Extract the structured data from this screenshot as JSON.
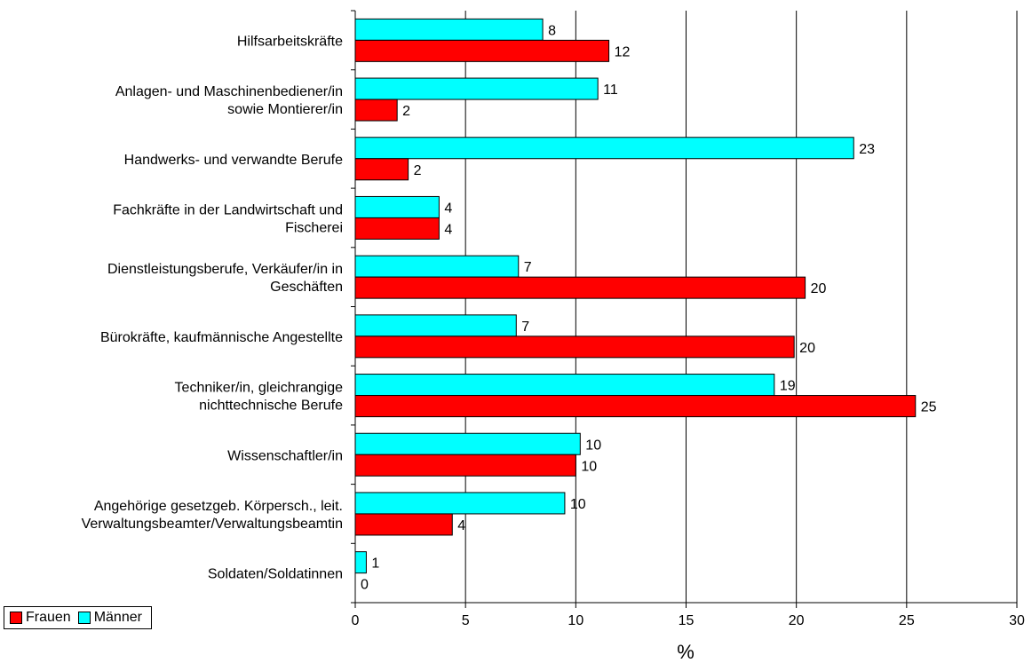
{
  "chart_data": {
    "type": "bar",
    "orientation": "horizontal",
    "categories": [
      "Hilfsarbeitskräfte",
      "Anlagen- und Maschinenbediener/in\nsowie Montierer/in",
      "Handwerks- und verwandte Berufe",
      "Fachkräfte in der Landwirtschaft und\nFischerei",
      "Dienstleistungsberufe, Verkäufer/in in\nGeschäften",
      "Bürokräfte, kaufmännische Angestellte",
      "Techniker/in, gleichrangige\nnichttechnische Berufe",
      "Wissenschaftler/in",
      "Angehörige gesetzgeb. Körpersch., leit.\nVerwaltungsbeamter/Verwaltungsbeamtin",
      "Soldaten/Soldatinnen"
    ],
    "series": [
      {
        "name": "Männer",
        "color": "#00ffff",
        "values": [
          8.5,
          11.0,
          22.6,
          3.8,
          7.4,
          7.3,
          19.0,
          10.2,
          9.5,
          0.5
        ],
        "labels": [
          "8",
          "11",
          "23",
          "4",
          "7",
          "7",
          "19",
          "10",
          "10",
          "1"
        ]
      },
      {
        "name": "Frauen",
        "color": "#ff0000",
        "values": [
          11.5,
          1.9,
          2.4,
          3.8,
          20.4,
          19.9,
          25.4,
          10.0,
          4.4,
          0
        ],
        "labels": [
          "12",
          "2",
          "2",
          "4",
          "20",
          "20",
          "25",
          "10",
          "4",
          "0"
        ]
      }
    ],
    "xlabel": "%",
    "xlim": [
      0,
      30
    ],
    "xticks": [
      "0",
      "5",
      "10",
      "15",
      "20",
      "25",
      "30"
    ],
    "grid": "vertical",
    "legend": "bottom-left"
  },
  "legend": {
    "frauen_label": "Frauen",
    "maenner_label": "Männer"
  }
}
